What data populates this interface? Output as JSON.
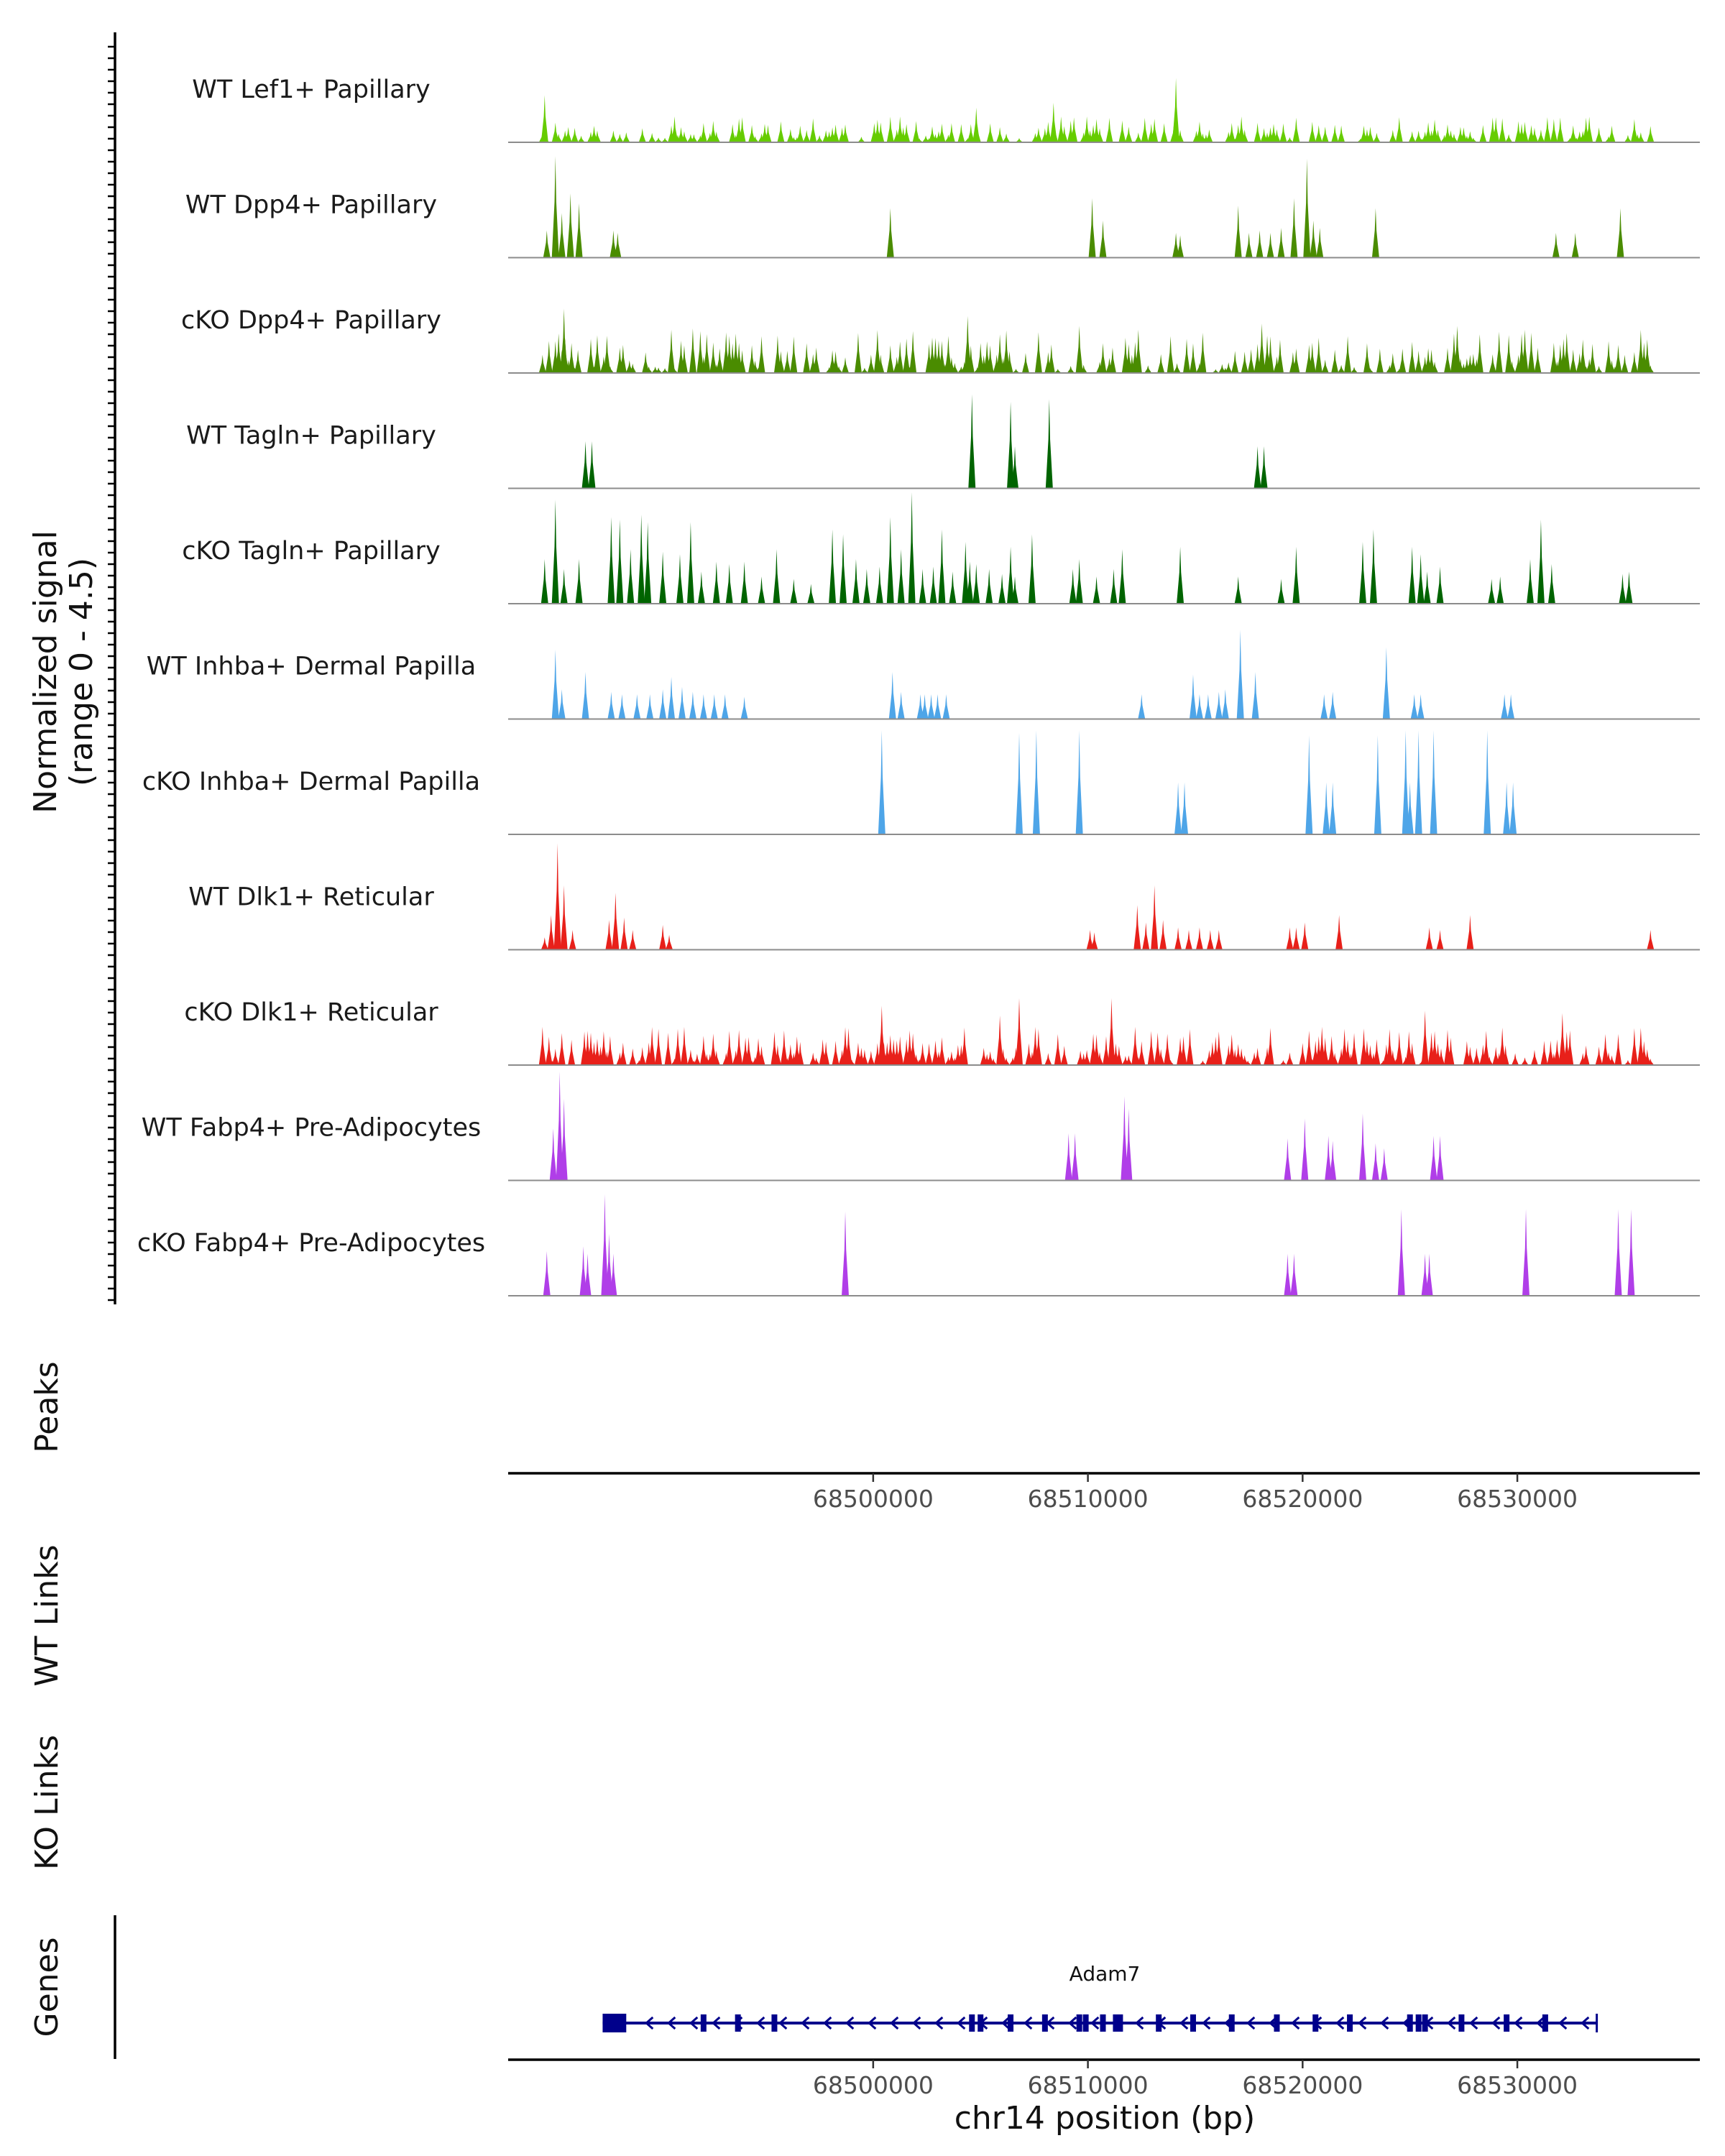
{
  "chart_data": {
    "type": "coverage",
    "chromosome": "chr14",
    "xlim": [
      68483000,
      68538500
    ],
    "x_axis_ticks": [
      "68500000",
      "68510000",
      "68520000",
      "68530000"
    ],
    "x_axis_tick_values": [
      68500000,
      68510000,
      68520000,
      68530000
    ],
    "xlabel": "chr14 position (bp)",
    "ylabel_line1": "Normalized signal",
    "ylabel_line2": "(range 0 - 4.5)",
    "ylim": [
      0,
      4.5
    ],
    "panel_labels": {
      "peaks": "Peaks",
      "wt_links": "WT Links",
      "ko_links": "KO Links",
      "genes": "Genes"
    },
    "tracks": [
      {
        "name": "WT Lef1+ Papillary",
        "color": "#66cc00",
        "dense": true,
        "seed": 11,
        "density": 0.55,
        "max": 0.9,
        "hi": [
          [
            68484700,
            1.9
          ],
          [
            68508400,
            1.6
          ],
          [
            68514100,
            2.6
          ],
          [
            68504800,
            1.4
          ]
        ]
      },
      {
        "name": "WT Dpp4+ Papillary",
        "color": "#4a8c00",
        "dense": false,
        "peaks": [
          [
            68484800,
            1.1
          ],
          [
            68485200,
            4.1
          ],
          [
            68485500,
            1.8
          ],
          [
            68485900,
            2.6
          ],
          [
            68486300,
            2.2
          ],
          [
            68487900,
            1.1
          ],
          [
            68488100,
            1.0
          ],
          [
            68500800,
            2.0
          ],
          [
            68510200,
            2.4
          ],
          [
            68510700,
            1.5
          ],
          [
            68514100,
            1.0
          ],
          [
            68514300,
            0.9
          ],
          [
            68517000,
            2.1
          ],
          [
            68517500,
            1.0
          ],
          [
            68518000,
            1.1
          ],
          [
            68518500,
            1.0
          ],
          [
            68519000,
            1.2
          ],
          [
            68519600,
            2.4
          ],
          [
            68520200,
            4.0
          ],
          [
            68520500,
            1.5
          ],
          [
            68520800,
            1.2
          ],
          [
            68523400,
            2.0
          ],
          [
            68531800,
            1.0
          ],
          [
            68532700,
            1.0
          ],
          [
            68534800,
            2.0
          ]
        ]
      },
      {
        "name": "cKO Dpp4+ Papillary",
        "color": "#4a8c00",
        "dense": true,
        "seed": 23,
        "density": 0.55,
        "max": 1.6,
        "hi": [
          [
            68485600,
            2.6
          ],
          [
            68504400,
            2.3
          ],
          [
            68509600,
            1.9
          ],
          [
            68518100,
            2.0
          ],
          [
            68527200,
            1.9
          ],
          [
            68491600,
            1.8
          ]
        ]
      },
      {
        "name": "WT Tagln+ Papillary",
        "color": "#006400",
        "dense": false,
        "peaks": [
          [
            68486600,
            1.9
          ],
          [
            68486900,
            1.9
          ],
          [
            68504600,
            3.8
          ],
          [
            68506400,
            3.5
          ],
          [
            68506600,
            1.7
          ],
          [
            68508200,
            3.6
          ],
          [
            68517900,
            1.7
          ],
          [
            68518200,
            1.7
          ]
        ]
      },
      {
        "name": "cKO Tagln+ Papillary",
        "color": "#006400",
        "dense": false,
        "peaks": [
          [
            68484700,
            1.8
          ],
          [
            68485200,
            4.2
          ],
          [
            68485600,
            1.4
          ],
          [
            68486300,
            1.8
          ],
          [
            68487800,
            3.5
          ],
          [
            68488200,
            3.4
          ],
          [
            68488700,
            2.2
          ],
          [
            68489200,
            3.6
          ],
          [
            68489500,
            3.3
          ],
          [
            68490200,
            2.1
          ],
          [
            68491000,
            2.0
          ],
          [
            68491500,
            3.3
          ],
          [
            68492000,
            1.3
          ],
          [
            68492700,
            1.7
          ],
          [
            68493300,
            1.6
          ],
          [
            68494000,
            1.7
          ],
          [
            68494800,
            1.1
          ],
          [
            68495500,
            2.2
          ],
          [
            68496300,
            1.0
          ],
          [
            68497100,
            0.8
          ],
          [
            68498100,
            3.0
          ],
          [
            68498600,
            2.8
          ],
          [
            68499200,
            1.8
          ],
          [
            68499700,
            1.4
          ],
          [
            68500300,
            1.5
          ],
          [
            68500800,
            3.5
          ],
          [
            68501300,
            2.2
          ],
          [
            68501800,
            4.6
          ],
          [
            68502300,
            1.4
          ],
          [
            68502800,
            1.5
          ],
          [
            68503200,
            3.0
          ],
          [
            68503700,
            1.3
          ],
          [
            68504300,
            2.5
          ],
          [
            68504800,
            1.6
          ],
          [
            68505400,
            1.4
          ],
          [
            68506000,
            1.2
          ],
          [
            68506600,
            1.1
          ],
          [
            68504500,
            1.7
          ],
          [
            68506400,
            2.3
          ],
          [
            68507400,
            2.8
          ],
          [
            68509300,
            1.4
          ],
          [
            68509600,
            1.8
          ],
          [
            68510400,
            1.1
          ],
          [
            68511200,
            1.4
          ],
          [
            68511600,
            2.2
          ],
          [
            68514300,
            2.3
          ],
          [
            68517000,
            1.1
          ],
          [
            68519000,
            1.0
          ],
          [
            68519700,
            2.3
          ],
          [
            68522800,
            2.5
          ],
          [
            68523300,
            3.0
          ],
          [
            68525100,
            2.3
          ],
          [
            68525500,
            2.0
          ],
          [
            68525800,
            1.3
          ],
          [
            68526400,
            1.5
          ],
          [
            68528800,
            1.0
          ],
          [
            68529200,
            1.1
          ],
          [
            68530600,
            1.8
          ],
          [
            68531100,
            3.4
          ],
          [
            68531600,
            1.6
          ],
          [
            68534900,
            1.2
          ],
          [
            68535200,
            1.3
          ]
        ]
      },
      {
        "name": "WT Inhba+ Dermal Papilla",
        "color": "#4ea5e8",
        "dense": false,
        "peaks": [
          [
            68485200,
            2.8
          ],
          [
            68485500,
            1.2
          ],
          [
            68486600,
            1.9
          ],
          [
            68487800,
            1.1
          ],
          [
            68488300,
            1.0
          ],
          [
            68489000,
            1.0
          ],
          [
            68489600,
            1.0
          ],
          [
            68490200,
            1.2
          ],
          [
            68490600,
            1.7
          ],
          [
            68491100,
            1.3
          ],
          [
            68491600,
            1.1
          ],
          [
            68492100,
            1.0
          ],
          [
            68492600,
            1.0
          ],
          [
            68493100,
            1.0
          ],
          [
            68494000,
            0.9
          ],
          [
            68500900,
            1.9
          ],
          [
            68501300,
            1.1
          ],
          [
            68502200,
            1.0
          ],
          [
            68502400,
            1.0
          ],
          [
            68502700,
            1.0
          ],
          [
            68503000,
            1.0
          ],
          [
            68503400,
            1.0
          ],
          [
            68512500,
            1.0
          ],
          [
            68514900,
            1.8
          ],
          [
            68515200,
            1.0
          ],
          [
            68515600,
            1.0
          ],
          [
            68516100,
            1.1
          ],
          [
            68516400,
            1.2
          ],
          [
            68517100,
            3.6
          ],
          [
            68517800,
            1.9
          ],
          [
            68521000,
            1.0
          ],
          [
            68521400,
            1.1
          ],
          [
            68523900,
            2.9
          ],
          [
            68525200,
            1.0
          ],
          [
            68525500,
            1.0
          ],
          [
            68529400,
            1.0
          ],
          [
            68529700,
            1.0
          ]
        ]
      },
      {
        "name": "cKO Inhba+ Dermal Papilla",
        "color": "#4ea5e8",
        "dense": false,
        "peaks": [
          [
            68500400,
            4.2
          ],
          [
            68506800,
            4.1
          ],
          [
            68507600,
            4.2
          ],
          [
            68509600,
            4.2
          ],
          [
            68514200,
            2.1
          ],
          [
            68514500,
            2.1
          ],
          [
            68520300,
            4.0
          ],
          [
            68521100,
            2.1
          ],
          [
            68521400,
            2.1
          ],
          [
            68523500,
            4.0
          ],
          [
            68524800,
            4.2
          ],
          [
            68525000,
            2.1
          ],
          [
            68525400,
            4.2
          ],
          [
            68526100,
            4.2
          ],
          [
            68528600,
            4.2
          ],
          [
            68529500,
            2.1
          ],
          [
            68529800,
            2.1
          ]
        ]
      },
      {
        "name": "WT Dlk1+ Reticular",
        "color": "#e8201a",
        "dense": false,
        "peaks": [
          [
            68484700,
            0.5
          ],
          [
            68485000,
            1.4
          ],
          [
            68485300,
            4.3
          ],
          [
            68485600,
            2.6
          ],
          [
            68486000,
            0.8
          ],
          [
            68487700,
            1.2
          ],
          [
            68488000,
            2.3
          ],
          [
            68488400,
            1.3
          ],
          [
            68488800,
            0.8
          ],
          [
            68490200,
            1.0
          ],
          [
            68490500,
            0.6
          ],
          [
            68510100,
            0.8
          ],
          [
            68510300,
            0.7
          ],
          [
            68512300,
            1.8
          ],
          [
            68512700,
            1.1
          ],
          [
            68513100,
            2.6
          ],
          [
            68513500,
            1.2
          ],
          [
            68514200,
            0.9
          ],
          [
            68514700,
            0.8
          ],
          [
            68515200,
            0.9
          ],
          [
            68515700,
            0.8
          ],
          [
            68516100,
            0.8
          ],
          [
            68519400,
            0.9
          ],
          [
            68519700,
            0.9
          ],
          [
            68520100,
            1.1
          ],
          [
            68521700,
            1.4
          ],
          [
            68525900,
            0.9
          ],
          [
            68526400,
            0.8
          ],
          [
            68527800,
            1.4
          ],
          [
            68536200,
            0.8
          ]
        ]
      },
      {
        "name": "cKO Dlk1+ Reticular",
        "color": "#e8201a",
        "dense": true,
        "seed": 41,
        "density": 0.62,
        "max": 1.4,
        "hi": [
          [
            68500400,
            2.4
          ],
          [
            68506800,
            2.7
          ],
          [
            68511100,
            2.7
          ],
          [
            68505900,
            2.0
          ],
          [
            68525700,
            2.2
          ],
          [
            68532100,
            2.1
          ]
        ]
      },
      {
        "name": "WT Fabp4+ Pre-Adipocytes",
        "color": "#b03ee8",
        "dense": false,
        "peaks": [
          [
            68485100,
            2.1
          ],
          [
            68485400,
            4.4
          ],
          [
            68485600,
            3.3
          ],
          [
            68509100,
            1.9
          ],
          [
            68509400,
            1.9
          ],
          [
            68511700,
            3.4
          ],
          [
            68511900,
            2.9
          ],
          [
            68519300,
            1.7
          ],
          [
            68520100,
            2.5
          ],
          [
            68521200,
            1.8
          ],
          [
            68521400,
            1.6
          ],
          [
            68522800,
            2.7
          ],
          [
            68523400,
            1.5
          ],
          [
            68523800,
            1.3
          ],
          [
            68526100,
            1.8
          ],
          [
            68526400,
            1.8
          ]
        ]
      },
      {
        "name": "cKO Fabp4+ Pre-Adipocytes",
        "color": "#b03ee8",
        "dense": false,
        "peaks": [
          [
            68484800,
            1.8
          ],
          [
            68486500,
            2.0
          ],
          [
            68486700,
            1.7
          ],
          [
            68487500,
            4.1
          ],
          [
            68487700,
            2.5
          ],
          [
            68487900,
            1.7
          ],
          [
            68498700,
            3.4
          ],
          [
            68519300,
            1.7
          ],
          [
            68519600,
            1.7
          ],
          [
            68524600,
            3.5
          ],
          [
            68525700,
            1.7
          ],
          [
            68525900,
            1.7
          ],
          [
            68530400,
            3.5
          ],
          [
            68534700,
            3.5
          ],
          [
            68535300,
            3.5
          ]
        ]
      }
    ],
    "gene": {
      "name": "Adam7",
      "start": 68487400,
      "end": 68533700,
      "strand": "-",
      "color": "#00008b",
      "utr_block": [
        68487400,
        68488500
      ],
      "exons": [
        68492100,
        68493700,
        68495400,
        68504600,
        68505000,
        68506400,
        68508000,
        68509600,
        68509900,
        68510700,
        68511300,
        68511500,
        68513300,
        68514900,
        68516700,
        68518800,
        68520600,
        68522200,
        68525000,
        68525400,
        68525700,
        68527400,
        68529500,
        68531300
      ]
    }
  }
}
